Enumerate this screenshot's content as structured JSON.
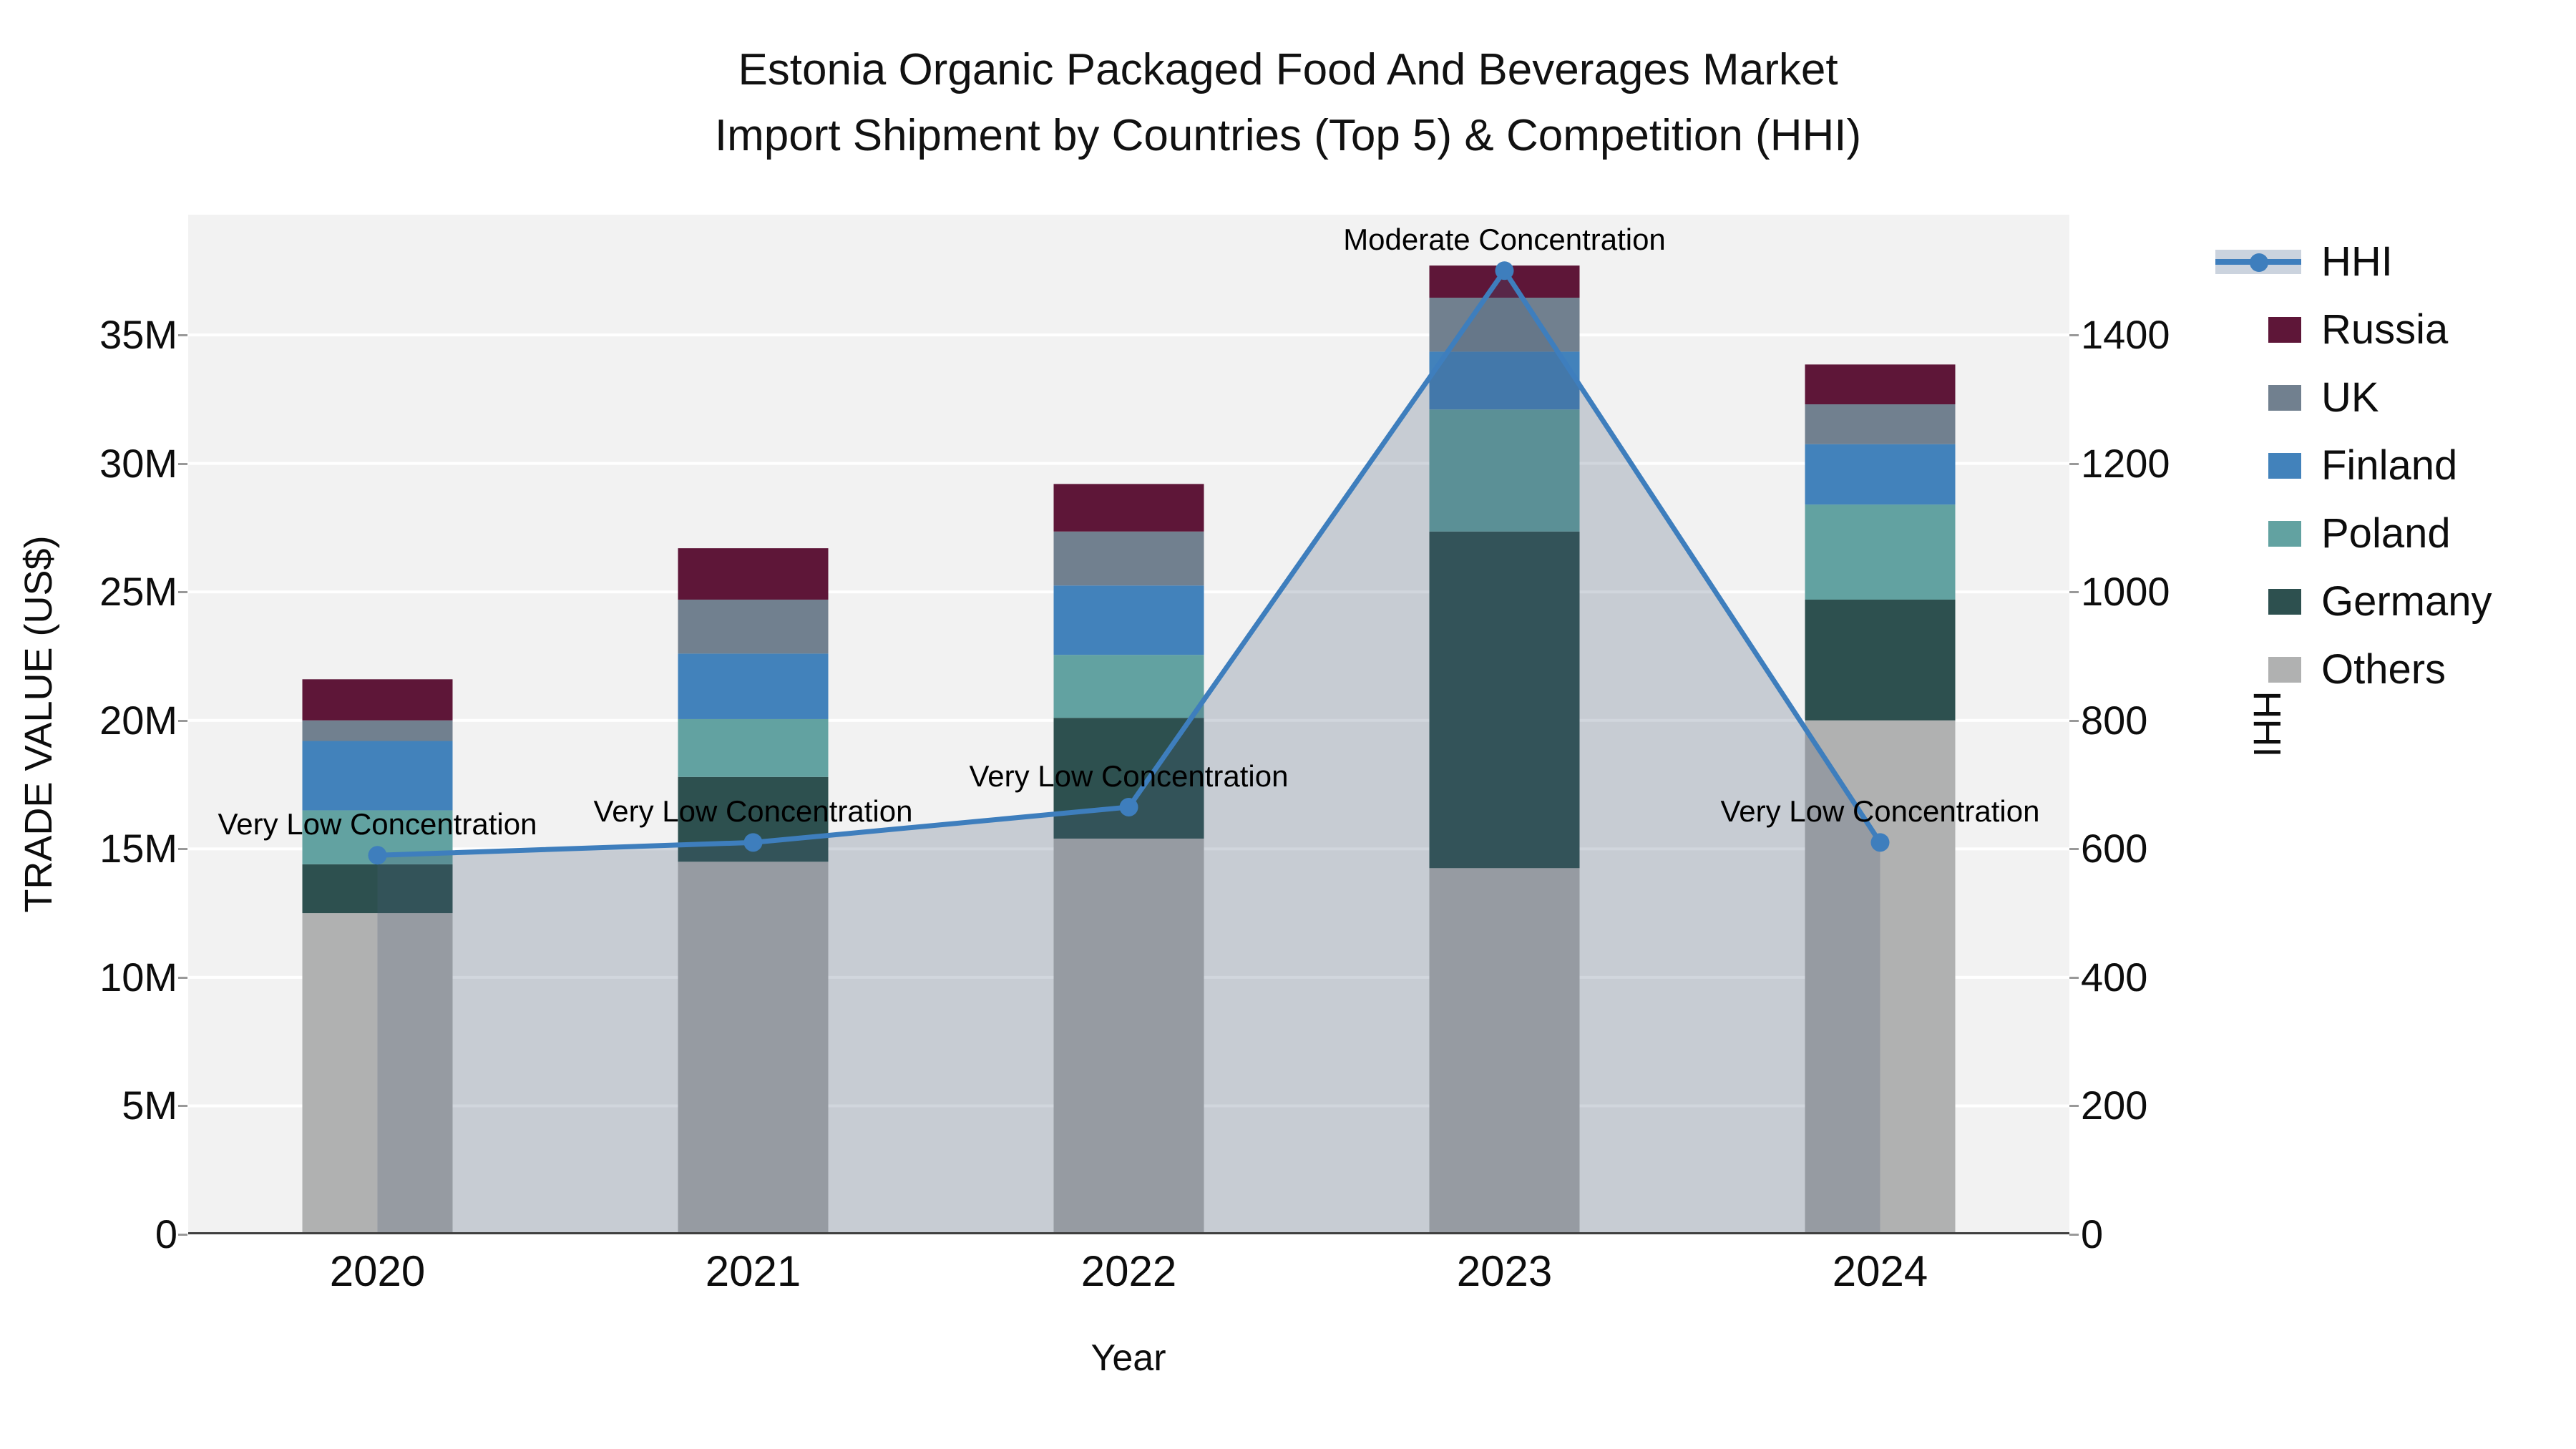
{
  "header": {
    "title_line1": "Estonia Organic Packaged Food And Beverages Market",
    "title_line2": "Import Shipment by Countries (Top 5) & Competition (HHI)"
  },
  "axes": {
    "x_title": "Year",
    "y_left_title": "TRADE VALUE (US$)",
    "y_right_title": "HHI",
    "y_left_ticks": [
      "0",
      "5M",
      "10M",
      "15M",
      "20M",
      "25M",
      "30M",
      "35M"
    ],
    "y_right_ticks": [
      "0",
      "200",
      "400",
      "600",
      "800",
      "1000",
      "1200",
      "1400"
    ]
  },
  "colors": {
    "hhi_line": "#3E7EBD",
    "hhi_area_fill": "rgba(70,90,120,0.25)",
    "legend_hhi_band": "#CBD3DE",
    "plot_background": "#F2F2F2",
    "gridline": "#FFFFFF",
    "axis_line": "#3F3F3F",
    "russia": "#5E1638",
    "uk": "#71808F",
    "finland": "#4282BB",
    "poland": "#62A2A1",
    "germany": "#2D504F",
    "others": "#B0B1B1"
  },
  "chart_data": {
    "type": "bar",
    "stacked": true,
    "title": "Estonia Organic Packaged Food And Beverages Market Import Shipment by Countries (Top 5) & Competition (HHI)",
    "xlabel": "Year",
    "ylabel_left": "TRADE VALUE (US$)",
    "ylabel_right": "HHI",
    "unit_left": "million US$",
    "ylim_left": [
      0,
      39.7
    ],
    "ylim_right": [
      0,
      1587
    ],
    "grid": true,
    "legend_position": "right",
    "categories": [
      "2020",
      "2021",
      "2022",
      "2023",
      "2024"
    ],
    "series": [
      {
        "name": "Russia",
        "color": "#5E1638",
        "values": [
          1.6,
          2.0,
          1.85,
          1.25,
          1.55
        ]
      },
      {
        "name": "UK",
        "color": "#71808F",
        "values": [
          0.8,
          2.1,
          2.1,
          2.1,
          1.55
        ]
      },
      {
        "name": "Finland",
        "color": "#4282BB",
        "values": [
          2.7,
          2.55,
          2.7,
          2.25,
          2.35
        ]
      },
      {
        "name": "Poland",
        "color": "#62A2A1",
        "values": [
          2.1,
          2.25,
          2.45,
          4.75,
          3.7
        ]
      },
      {
        "name": "Germany",
        "color": "#2D504F",
        "values": [
          1.9,
          3.3,
          4.7,
          13.1,
          4.7
        ]
      },
      {
        "name": "Others",
        "color": "#B0B1B1",
        "values": [
          12.5,
          14.5,
          15.4,
          14.25,
          20.0
        ]
      }
    ],
    "stack_order_bottom_to_top": [
      "Others",
      "Germany",
      "Poland",
      "Finland",
      "UK",
      "Russia"
    ],
    "totals": [
      21.6,
      26.7,
      29.2,
      37.7,
      33.85
    ],
    "line_series": {
      "name": "HHI",
      "axis": "right",
      "color": "#3E7EBD",
      "values": [
        590,
        610,
        665,
        1500,
        610
      ]
    },
    "annotations": [
      {
        "year": "2020",
        "text": "Very Low Concentration"
      },
      {
        "year": "2021",
        "text": "Very Low Concentration"
      },
      {
        "year": "2022",
        "text": "Very Low Concentration"
      },
      {
        "year": "2023",
        "text": "Moderate Concentration"
      },
      {
        "year": "2024",
        "text": "Very Low Concentration"
      }
    ]
  }
}
